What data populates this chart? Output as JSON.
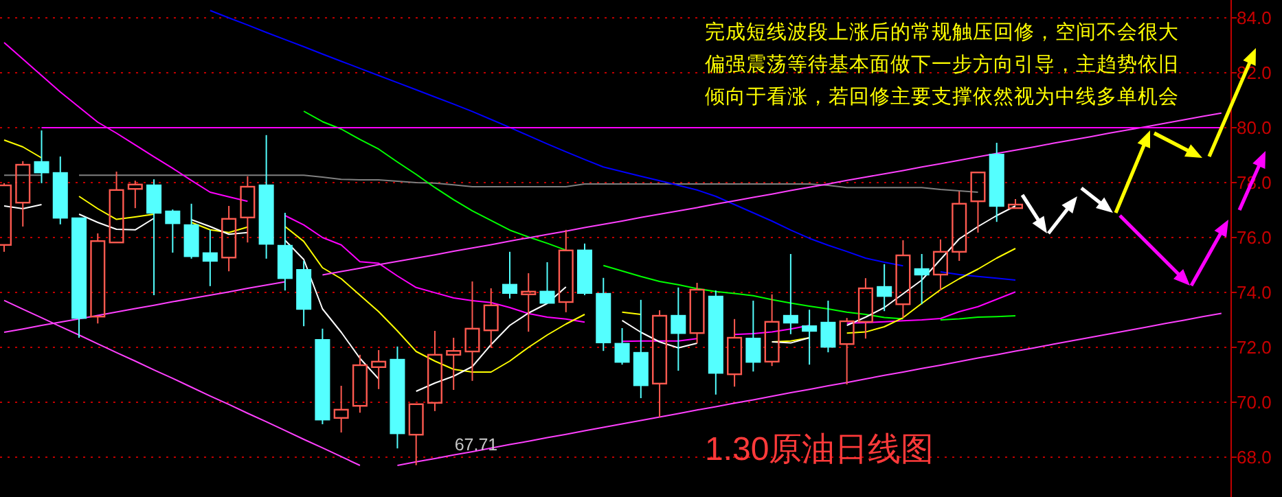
{
  "chart_data": {
    "type": "candlestick",
    "title": "1.30原油日线图",
    "annotations": [
      "完成短线波段上涨后的常规触压回修，空间不会很大",
      "偏强震荡等待基本面做下一步方向引导，主趋势依旧",
      "倾向于看涨，若回修主要支撑依然视为中线多单机会",
      "67.71"
    ],
    "categories": [
      null,
      null,
      null,
      null,
      null,
      null,
      null,
      null,
      null,
      null,
      null,
      null,
      null,
      null,
      null,
      null,
      null,
      null,
      null,
      null,
      null,
      null,
      null,
      null,
      null,
      null,
      null,
      null,
      null,
      null,
      null,
      null,
      null,
      null,
      null,
      null,
      null,
      null,
      null,
      null,
      null,
      null,
      null,
      null,
      null,
      null,
      null,
      null,
      null,
      null,
      null,
      null,
      null,
      null,
      null,
      null,
      null,
      null,
      null,
      null,
      null,
      null,
      null,
      null,
      null,
      null
    ],
    "ohlc": [
      [
        75.73,
        77.98,
        75.48,
        77.9
      ],
      [
        77.27,
        78.78,
        76.4,
        78.65
      ],
      [
        78.75,
        79.9,
        77.98,
        78.37
      ],
      [
        78.35,
        78.95,
        76.48,
        76.72
      ],
      [
        76.7,
        76.7,
        72.35,
        73.07
      ],
      [
        73.12,
        76.15,
        72.87,
        75.87
      ],
      [
        75.82,
        78.4,
        75.82,
        77.73
      ],
      [
        77.77,
        78.07,
        77.07,
        77.93
      ],
      [
        77.9,
        78.12,
        73.9,
        76.9
      ],
      [
        76.95,
        77.02,
        75.45,
        76.52
      ],
      [
        76.45,
        77.23,
        75.23,
        75.32
      ],
      [
        75.43,
        76.28,
        74.23,
        75.15
      ],
      [
        75.27,
        77.15,
        74.77,
        76.68
      ],
      [
        76.73,
        78.23,
        75.82,
        77.85
      ],
      [
        77.9,
        79.73,
        75.23,
        75.77
      ],
      [
        75.7,
        76.9,
        74.07,
        74.52
      ],
      [
        74.82,
        75.15,
        72.77,
        73.4
      ],
      [
        72.27,
        72.68,
        69.2,
        69.37
      ],
      [
        69.43,
        70.6,
        68.9,
        69.73
      ],
      [
        69.87,
        71.73,
        69.62,
        71.35
      ],
      [
        71.28,
        71.9,
        70.48,
        71.48
      ],
      [
        71.55,
        72.03,
        68.32,
        68.87
      ],
      [
        68.82,
        69.93,
        67.71,
        69.93
      ],
      [
        69.98,
        72.6,
        69.68,
        71.73
      ],
      [
        71.73,
        72.35,
        70.45,
        71.87
      ],
      [
        71.85,
        74.4,
        70.78,
        72.68
      ],
      [
        72.62,
        74.15,
        71.98,
        73.53
      ],
      [
        74.28,
        75.48,
        73.78,
        73.98
      ],
      [
        73.93,
        74.7,
        72.57,
        74.03
      ],
      [
        74.03,
        75.1,
        73.62,
        73.62
      ],
      [
        73.65,
        76.28,
        73.28,
        75.53
      ],
      [
        75.53,
        75.78,
        73.9,
        73.98
      ],
      [
        73.95,
        74.53,
        71.87,
        72.18
      ],
      [
        72.13,
        72.7,
        71.37,
        71.47
      ],
      [
        71.8,
        73.73,
        70.15,
        70.62
      ],
      [
        70.68,
        73.35,
        69.45,
        73.15
      ],
      [
        73.15,
        74.18,
        71.15,
        72.52
      ],
      [
        72.52,
        74.35,
        72.15,
        74.1
      ],
      [
        73.85,
        74.07,
        70.28,
        71.07
      ],
      [
        71.02,
        73.03,
        70.57,
        72.35
      ],
      [
        72.32,
        73.7,
        71.12,
        71.47
      ],
      [
        71.48,
        73.93,
        71.32,
        72.93
      ],
      [
        73.15,
        75.4,
        72.48,
        72.9
      ],
      [
        72.77,
        73.37,
        71.37,
        72.6
      ],
      [
        72.9,
        73.7,
        71.82,
        72.02
      ],
      [
        72.12,
        73.07,
        70.65,
        72.95
      ],
      [
        72.93,
        74.52,
        72.32,
        74.15
      ],
      [
        74.2,
        75.03,
        73.32,
        73.87
      ],
      [
        73.57,
        75.9,
        73.07,
        75.35
      ],
      [
        74.85,
        75.4,
        73.57,
        74.65
      ],
      [
        74.65,
        75.93,
        74.07,
        75.48
      ],
      [
        75.48,
        77.68,
        75.15,
        77.23
      ],
      [
        77.32,
        78.37,
        76.18,
        78.37
      ],
      [
        79.02,
        79.45,
        76.57,
        77.15
      ],
      [
        77.07,
        77.4,
        77.07,
        77.2
      ],
      null,
      null,
      null,
      null,
      null,
      null,
      null,
      null,
      null,
      null,
      null
    ],
    "colors": [
      "#ff5a50",
      "#ff5a50",
      "#54ffff",
      "#54ffff",
      "#54ffff",
      "#ff5a50",
      "#ff5a50",
      "#ff5a50",
      "#54ffff",
      "#54ffff",
      "#54ffff",
      "#54ffff",
      "#ff5a50",
      "#ff5a50",
      "#54ffff",
      "#54ffff",
      "#54ffff",
      "#54ffff",
      "#ff5a50",
      "#ff5a50",
      "#ff5a50",
      "#54ffff",
      "#ff5a50",
      "#ff5a50",
      "#ff5a50",
      "#ff5a50",
      "#ff5a50",
      "#54ffff",
      "#ff5a50",
      "#54ffff",
      "#ff5a50",
      "#54ffff",
      "#54ffff",
      "#54ffff",
      "#54ffff",
      "#ff5a50",
      "#54ffff",
      "#ff5a50",
      "#54ffff",
      "#ff5a50",
      "#54ffff",
      "#ff5a50",
      "#54ffff",
      "#54ffff",
      "#54ffff",
      "#ff5a50",
      "#ff5a50",
      "#54ffff",
      "#ff5a50",
      "#54ffff",
      "#ff5a50",
      "#ff5a50",
      "#ff5a50",
      "#54ffff",
      "#ff5a50",
      null,
      null,
      null,
      null,
      null,
      null,
      null,
      null,
      null,
      null,
      null
    ],
    "series": [
      {
        "type": "line",
        "color": "#808080",
        "values": [
          78.27,
          78.27,
          78.27,
          null,
          78.27,
          78.27,
          78.27,
          78.27,
          78.27,
          78.27,
          78.27,
          78.27,
          78.27,
          78.27,
          78.27,
          78.27,
          78.27,
          78.2,
          78.12,
          78.1,
          78.1,
          78.05,
          78.0,
          77.98,
          77.92,
          77.85,
          77.85,
          77.85,
          77.85,
          77.85,
          77.85,
          77.95,
          77.95,
          77.95,
          77.95,
          77.95,
          77.95,
          77.95,
          77.95,
          77.95,
          77.95,
          77.95,
          77.95,
          77.95,
          77.9,
          77.82,
          77.82,
          77.82,
          77.82,
          77.82,
          77.75,
          77.7,
          77.65,
          null,
          null,
          null,
          null,
          null,
          null,
          null,
          null,
          null,
          null,
          null,
          null,
          null
        ]
      },
      {
        "type": "line",
        "color": "#0000ff",
        "values": [
          null,
          null,
          null,
          null,
          null,
          null,
          null,
          null,
          null,
          null,
          null,
          84.27,
          84.0,
          83.74,
          83.47,
          83.21,
          82.95,
          82.68,
          82.42,
          82.16,
          81.9,
          81.64,
          81.38,
          81.12,
          80.86,
          80.59,
          80.3,
          80.01,
          79.71,
          79.41,
          79.12,
          78.84,
          78.57,
          78.4,
          78.23,
          78.07,
          77.9,
          77.73,
          77.5,
          77.2,
          76.9,
          76.6,
          76.27,
          75.97,
          75.72,
          75.49,
          75.25,
          75.1,
          74.97,
          null,
          74.75,
          74.65,
          74.58,
          74.52,
          74.45,
          null,
          null,
          null,
          null,
          null,
          null,
          null,
          null,
          null,
          null,
          null
        ]
      },
      {
        "type": "line",
        "color": "#00ff00",
        "values": [
          null,
          null,
          null,
          null,
          null,
          null,
          null,
          null,
          null,
          null,
          null,
          null,
          null,
          null,
          null,
          null,
          80.6,
          80.22,
          79.95,
          79.57,
          79.22,
          78.75,
          78.3,
          77.82,
          77.38,
          76.97,
          76.62,
          76.27,
          76.02,
          75.79,
          75.54,
          null,
          74.98,
          74.78,
          74.58,
          74.4,
          74.28,
          74.14,
          74.03,
          73.96,
          73.88,
          73.74,
          73.61,
          73.5,
          73.4,
          73.28,
          73.2,
          73.09,
          73.04,
          null,
          73.0,
          73.04,
          73.1,
          73.12,
          73.15,
          null,
          null,
          null,
          null,
          null,
          null,
          null,
          null,
          null,
          null,
          null
        ]
      },
      {
        "type": "line",
        "color": "#ff00ff",
        "values": [
          83.1,
          82.5,
          81.9,
          81.3,
          80.75,
          80.2,
          79.8,
          79.37,
          78.94,
          78.52,
          78.08,
          77.65,
          77.48,
          77.32,
          null,
          76.8,
          76.46,
          76.0,
          75.73,
          75.12,
          75.06,
          74.6,
          74.18,
          73.99,
          73.8,
          73.7,
          73.63,
          73.45,
          73.23,
          73.1,
          73.03,
          72.92,
          null,
          72.22,
          72.23,
          72.23,
          72.23,
          72.32,
          null,
          72.47,
          72.5,
          72.56,
          72.67,
          72.8,
          null,
          72.88,
          72.9,
          72.93,
          72.97,
          73.0,
          73.05,
          73.3,
          73.48,
          73.75,
          74.02,
          null,
          null,
          null,
          null,
          null,
          null,
          null,
          null,
          null,
          null,
          null
        ]
      },
      {
        "type": "line",
        "color": "#ffff00",
        "values": [
          79.55,
          79.3,
          78.9,
          null,
          77.5,
          77.05,
          76.66,
          76.75,
          76.85,
          null,
          76.55,
          76.28,
          76.18,
          76.38,
          null,
          76.4,
          75.86,
          74.9,
          74.5,
          73.9,
          73.3,
          72.6,
          71.85,
          71.5,
          71.2,
          71.1,
          71.1,
          71.5,
          72.0,
          72.45,
          72.85,
          73.2,
          null,
          73.28,
          73.2,
          null,
          null,
          null,
          null,
          null,
          null,
          72.2,
          72.23,
          72.35,
          null,
          72.52,
          72.56,
          72.75,
          73.08,
          73.6,
          74.1,
          74.5,
          74.85,
          75.25,
          75.6,
          null,
          null,
          null,
          null,
          null,
          null,
          null,
          null,
          null,
          null,
          null
        ]
      },
      {
        "type": "line",
        "color": "#ffffff",
        "values": [
          77.15,
          77.05,
          77.2,
          null,
          76.85,
          76.55,
          76.3,
          76.28,
          76.7,
          null,
          76.65,
          76.4,
          76.12,
          76.18,
          null,
          75.9,
          75.2,
          73.4,
          72.55,
          71.6,
          70.85,
          null,
          70.4,
          70.7,
          70.95,
          71.3,
          72.1,
          72.8,
          73.25,
          73.6,
          74.2,
          null,
          null,
          72.98,
          72.55,
          72.2,
          71.98,
          72.15,
          null,
          null,
          null,
          72.2,
          72.16,
          72.35,
          null,
          72.8,
          73.1,
          73.45,
          73.95,
          74.45,
          75.2,
          75.95,
          76.4,
          76.8,
          77.15,
          null,
          null,
          null,
          null,
          null,
          null,
          null,
          null,
          null,
          null,
          null
        ]
      },
      {
        "type": "line",
        "color": "#ff40ff",
        "values": [
          72.55,
          72.67,
          72.8,
          72.92,
          73.04,
          73.16,
          73.29,
          73.41,
          73.53,
          73.66,
          73.78,
          73.9,
          74.02,
          74.15,
          74.27,
          74.39,
          null,
          74.64,
          74.76,
          74.88,
          75.01,
          75.13,
          75.25,
          75.37,
          75.5,
          75.62,
          75.74,
          75.87,
          75.99,
          76.11,
          76.23,
          76.36,
          76.48,
          76.6,
          76.73,
          76.85,
          76.97,
          77.09,
          77.22,
          77.34,
          77.46,
          77.58,
          77.71,
          77.83,
          77.95,
          78.08,
          78.2,
          78.32,
          78.44,
          78.57,
          78.69,
          78.81,
          78.94,
          79.06,
          79.18,
          79.3,
          79.43,
          79.55,
          79.67,
          79.8,
          79.92,
          80.04,
          80.16,
          80.29,
          80.41,
          80.53
        ]
      },
      {
        "type": "line",
        "color": "#ff40ff",
        "values": [
          null,
          null,
          null,
          null,
          null,
          null,
          null,
          null,
          null,
          null,
          null,
          null,
          null,
          null,
          null,
          null,
          null,
          null,
          null,
          null,
          null,
          67.7,
          67.83,
          67.95,
          68.08,
          68.2,
          68.33,
          68.46,
          68.58,
          68.71,
          68.83,
          68.96,
          69.09,
          69.21,
          69.34,
          69.46,
          69.59,
          69.72,
          69.84,
          69.97,
          70.09,
          70.22,
          70.35,
          70.47,
          70.6,
          70.72,
          70.85,
          70.98,
          71.1,
          71.23,
          71.35,
          71.48,
          71.61,
          71.73,
          71.86,
          71.98,
          72.11,
          72.24,
          72.36,
          72.49,
          72.61,
          72.74,
          72.87,
          72.99,
          73.12,
          73.24
        ]
      },
      {
        "type": "line",
        "color": "#ff40ff",
        "values": [
          73.71,
          73.39,
          73.08,
          72.76,
          72.45,
          72.13,
          71.81,
          71.5,
          71.18,
          70.87,
          70.55,
          70.23,
          69.92,
          69.6,
          69.29,
          68.97,
          68.65,
          68.34,
          68.02,
          67.7,
          null,
          null,
          null,
          null,
          null,
          null,
          null,
          null,
          null,
          null,
          null,
          null,
          null,
          null,
          null,
          null,
          null,
          null,
          null,
          null,
          null,
          null,
          null,
          null,
          null,
          null,
          null,
          null,
          null,
          null,
          null,
          null,
          null,
          null,
          null,
          null,
          null,
          null,
          null,
          null,
          null,
          null,
          null,
          null,
          null,
          null
        ]
      },
      {
        "type": "line",
        "color": "#ff00ff",
        "values": [
          null,
          null,
          80,
          80,
          80,
          80,
          80,
          80,
          80,
          80,
          80,
          80,
          80,
          80,
          80,
          80,
          80,
          80,
          80,
          80,
          80,
          80,
          80,
          80,
          80,
          80,
          80,
          80,
          80,
          80,
          80,
          80,
          80,
          80,
          80,
          80,
          80,
          80,
          80,
          80,
          80,
          80,
          80,
          80,
          80,
          80,
          80,
          80,
          80,
          80,
          80,
          80,
          80,
          80,
          80,
          80,
          80,
          80,
          80,
          80,
          80,
          80,
          80,
          80,
          80,
          80
        ]
      }
    ],
    "ylim": [
      66.55,
      84.65
    ],
    "yticks": [
      {
        "value": 68,
        "label": "68.0"
      },
      {
        "value": 70,
        "label": "70.0"
      },
      {
        "value": 72,
        "label": "72.0"
      },
      {
        "value": 74,
        "label": "74.0"
      },
      {
        "value": 76,
        "label": "76.0"
      },
      {
        "value": 78,
        "label": "78.0"
      },
      {
        "value": 80,
        "label": "80.0"
      },
      {
        "value": 82,
        "label": "82.0"
      },
      {
        "value": 84,
        "label": "84.0"
      }
    ],
    "grid": "y",
    "tick_labels": "y"
  }
}
